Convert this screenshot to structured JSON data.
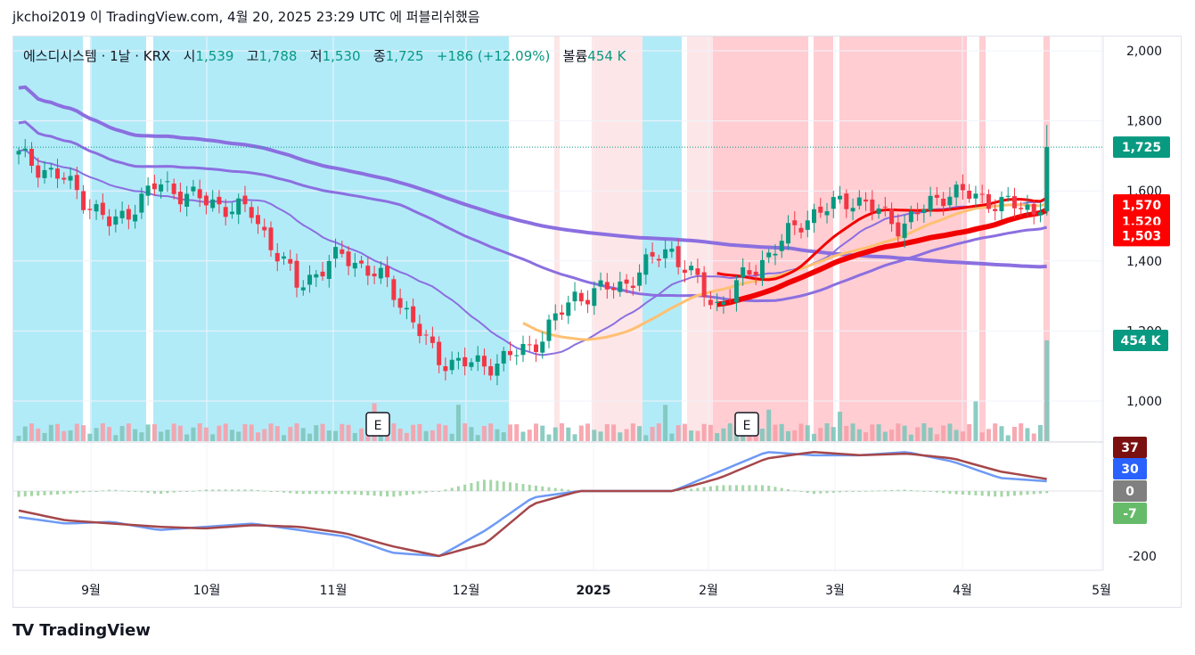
{
  "header": {
    "text": "jkchoi2019 이 TradingView.com, 4월 20, 2025 23:29 UTC 에 퍼블리쉬했음"
  },
  "legend": {
    "symbol": "에스디시스템 · 1날 · KRX",
    "open_label": "시",
    "open": "1,539",
    "high_label": "고",
    "high": "1,788",
    "low_label": "저",
    "low": "1,530",
    "close_label": "종",
    "close": "1,725",
    "change": "+186 (+12.09%)",
    "volume_label": "볼륨",
    "volume": "454 K"
  },
  "footer": {
    "logo": "TV",
    "brand": "TradingView"
  },
  "colors": {
    "up": "#089981",
    "down": "#f23645",
    "cyan_band": "#b2ebf8",
    "pink_band": "#ffcdd2",
    "light_pink_band": "#fde6e8",
    "purple": "#8b6fe0",
    "orange": "#ffc072",
    "red_ma": "#f20000",
    "macd": "#6e9af5",
    "signal": "#a5474a"
  },
  "chart_data": [
    {
      "type": "candlestick",
      "title": "",
      "x_ticks": [
        "9월",
        "10월",
        "11월",
        "12월",
        "2025",
        "2월",
        "3월",
        "4월",
        "5월"
      ],
      "y_ticks": [
        "2,000",
        "1,800",
        "1,600",
        "1,400",
        "1,200",
        "1,000"
      ],
      "ylim": [
        930,
        2040
      ],
      "last_price": "1,725",
      "price_badges": [
        "1,570",
        "1,520",
        "1,503"
      ],
      "volume_badge": "454 K",
      "earnings_markers": [
        "E",
        "E"
      ],
      "close_anchors": [
        {
          "x": "8월 초",
          "y": 1700
        },
        {
          "x": "9월",
          "y": 1630
        },
        {
          "x": "9월 중순",
          "y": 1500
        },
        {
          "x": "9월 말",
          "y": 1620
        },
        {
          "x": "10월",
          "y": 1570
        },
        {
          "x": "10월 중순",
          "y": 1540
        },
        {
          "x": "11월 초",
          "y": 1330
        },
        {
          "x": "11월",
          "y": 1420
        },
        {
          "x": "11월 중순",
          "y": 1330
        },
        {
          "x": "11월 말",
          "y": 1120
        },
        {
          "x": "12월",
          "y": 1100
        },
        {
          "x": "12월 중순",
          "y": 1150
        },
        {
          "x": "12월 말",
          "y": 1300
        },
        {
          "x": "1월 초",
          "y": 1330
        },
        {
          "x": "1월 중순",
          "y": 1440
        },
        {
          "x": "1월 말",
          "y": 1270
        },
        {
          "x": "2월",
          "y": 1400
        },
        {
          "x": "2월 중순",
          "y": 1530
        },
        {
          "x": "2월 말",
          "y": 1580
        },
        {
          "x": "3월",
          "y": 1500
        },
        {
          "x": "3월 중순",
          "y": 1600
        },
        {
          "x": "4월",
          "y": 1570
        },
        {
          "x": "4월 중순",
          "y": 1539
        },
        {
          "x": "4월 18일",
          "y": 1725
        }
      ]
    },
    {
      "type": "line",
      "title": "",
      "y_ticks": [
        "-200"
      ],
      "badges": [
        "37",
        "30",
        "0",
        "-7"
      ],
      "series": [
        {
          "values": [
            -80,
            -100,
            -95,
            -120,
            -110,
            -100,
            -120,
            -140,
            -190,
            -200,
            -120,
            -20,
            0,
            0,
            0,
            60,
            120,
            110,
            110,
            120,
            90,
            40,
            30
          ]
        },
        {
          "values": [
            -60,
            -90,
            -100,
            -110,
            -115,
            -105,
            -110,
            -130,
            -170,
            -200,
            -160,
            -40,
            0,
            0,
            0,
            40,
            100,
            120,
            110,
            115,
            100,
            60,
            37
          ]
        }
      ]
    }
  ]
}
